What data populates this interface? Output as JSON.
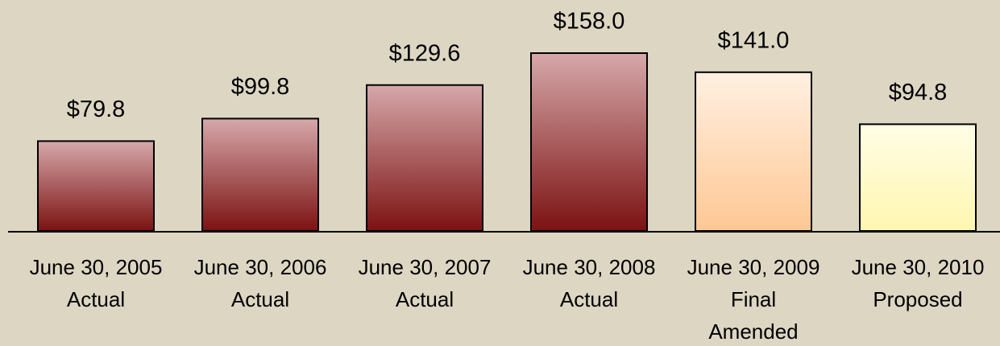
{
  "chart_data": {
    "type": "bar",
    "categories": [
      [
        "June 30, 2005",
        "Actual"
      ],
      [
        "June 30, 2006",
        "Actual"
      ],
      [
        "June 30, 2007",
        "Actual"
      ],
      [
        "June 30, 2008",
        "Actual"
      ],
      [
        "June 30, 2009",
        "Final",
        "Amended"
      ],
      [
        "June 30, 2010",
        "Proposed"
      ]
    ],
    "values": [
      79.8,
      99.8,
      129.6,
      158.0,
      141.0,
      94.8
    ],
    "value_labels": [
      "$79.8",
      "$99.8",
      "$129.6",
      "$158.0",
      "$141.0",
      "$94.8"
    ],
    "colors": [
      [
        "#d6a8aa",
        "#7c1212"
      ],
      [
        "#d6a8aa",
        "#7c1212"
      ],
      [
        "#d6a8aa",
        "#7c1212"
      ],
      [
        "#d6a8aa",
        "#7c1212"
      ],
      [
        "#fff0e2",
        "#ffc794"
      ],
      [
        "#fffde6",
        "#fff6b0"
      ]
    ]
  }
}
